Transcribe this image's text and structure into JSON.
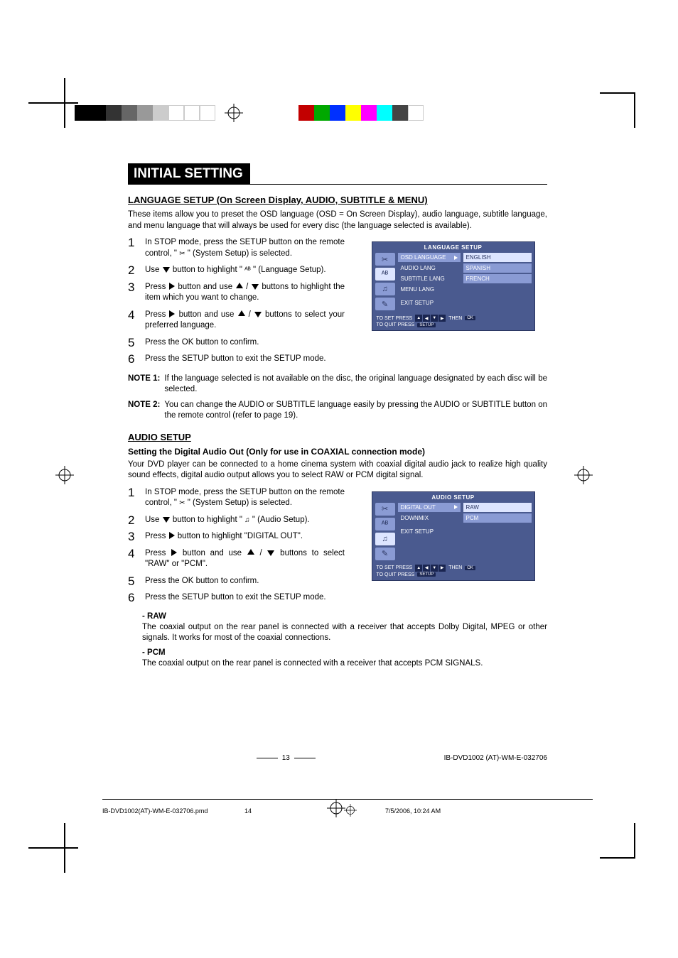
{
  "color_bars_left": [
    "#000000",
    "#000000",
    "#333333",
    "#666666",
    "#999999",
    "#cccccc",
    "#ffffff",
    "#ffffff",
    "#ffffff"
  ],
  "color_bars_right": [
    "#c20000",
    "#00a800",
    "#0030ff",
    "#ffff00",
    "#ff00ff",
    "#00ffff",
    "#444444",
    "#ffffff"
  ],
  "page": {
    "title": "INITIAL SETTING"
  },
  "lang_section": {
    "heading": "LANGUAGE SETUP (On Screen Display, AUDIO, SUBTITLE & MENU)",
    "intro": "These items allow you to preset the OSD language (OSD = On Screen Display), audio language, subtitle language, and menu language that will always be used for every disc (the language selected is available).",
    "steps": [
      "In STOP mode, press the SETUP button on the remote control, \" ✂ \" (System Setup) is selected.",
      "Use ▼ button to highlight \" ᴬᴮ \" (Language Setup).",
      "Press ▶ button and use ▲ / ▼ buttons to highlight the item which you want to change.",
      "Press ▶ button and use ▲ / ▼ buttons to select your preferred language.",
      "Press the OK button to confirm.",
      "Press the SETUP button to exit the SETUP mode."
    ],
    "note1_label": "NOTE 1:",
    "note1": "If the language selected is not available on the disc, the original language designated by each disc will be selected.",
    "note2_label": "NOTE 2:",
    "note2": "You can change the AUDIO or SUBTITLE language easily by pressing the AUDIO or SUBTITLE button on the remote control (refer to page 19).",
    "osd": {
      "title": "LANGUAGE SETUP",
      "icons": [
        "✂",
        "ᴬᴮ",
        "♫",
        "✎"
      ],
      "menu_left": [
        "OSD LANGUAGE",
        "AUDIO LANG",
        "SUBTITLE LANG",
        "MENU LANG",
        "EXIT SETUP"
      ],
      "menu_right": [
        "ENGLISH",
        "SPANISH",
        "FRENCH"
      ],
      "footer_set": "TO SET PRESS",
      "footer_quit": "TO QUIT PRESS",
      "then": "THEN",
      "ok": "OK",
      "setup": "SETUP"
    }
  },
  "audio_section": {
    "heading": "AUDIO SETUP",
    "subheading": "Setting the Digital Audio Out (Only for use in COAXIAL connection mode)",
    "intro": "Your DVD player can be connected to a home cinema system with coaxial digital audio jack to realize high quality sound effects, digital audio output allows you to select RAW or PCM digital signal.",
    "steps": [
      "In STOP mode, press the SETUP button on the remote control, \" ✂ \" (System Setup) is selected.",
      "Use ▼ button to highlight \" ♫ \" (Audio Setup).",
      "Press ▶ button to highlight \"DIGITAL OUT\".",
      "Press ▶ button and use ▲ / ▼ buttons to select \"RAW\" or \"PCM\".",
      "Press the OK button to confirm.",
      "Press the SETUP button to exit the SETUP mode."
    ],
    "osd": {
      "title": "AUDIO SETUP",
      "icons": [
        "✂",
        "ᴬᴮ",
        "♫",
        "✎"
      ],
      "menu_left": [
        "DIGITAL OUT",
        "DOWNMIX",
        "EXIT SETUP"
      ],
      "menu_right": [
        "RAW",
        "PCM"
      ],
      "footer_set": "TO SET PRESS",
      "footer_quit": "TO QUIT PRESS",
      "then": "THEN",
      "ok": "OK",
      "setup": "SETUP"
    },
    "raw_h": "- RAW",
    "raw_p": "The coaxial output on the rear panel is connected with a receiver that accepts Dolby Digital, MPEG or other signals. It works for most of the coaxial connections.",
    "pcm_h": "- PCM",
    "pcm_p": "The coaxial output on the rear panel is connected with a receiver that accepts PCM SIGNALS."
  },
  "footer": {
    "page_num": "13",
    "doc_id": "IB-DVD1002 (AT)-WM-E-032706"
  },
  "meta": {
    "file": "IB-DVD1002(AT)-WM-E-032706.pmd",
    "page": "14",
    "timestamp": "7/5/2006, 10:24 AM"
  }
}
